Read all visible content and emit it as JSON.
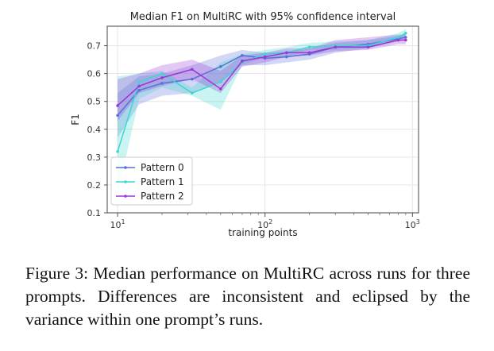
{
  "chart_data": {
    "type": "line",
    "title": "Median F1 on MultiRC with 95% confidence interval",
    "xlabel": "training points",
    "ylabel": "F1",
    "xscale": "log",
    "xlim": [
      8.5,
      1100
    ],
    "ylim": [
      0.1,
      0.77
    ],
    "grid": true,
    "legend_position": "lower-left",
    "yticks": [
      "0.1",
      "0.2",
      "0.3",
      "0.4",
      "0.5",
      "0.6",
      "0.7"
    ],
    "xticks": [
      {
        "value": 10,
        "base": "10",
        "exp": "1"
      },
      {
        "value": 100,
        "base": "10",
        "exp": "2"
      },
      {
        "value": 1000,
        "base": "10",
        "exp": "3"
      }
    ],
    "x": [
      10,
      14,
      20,
      32,
      50,
      70,
      100,
      140,
      200,
      300,
      500,
      800,
      900
    ],
    "series": [
      {
        "name": "Pattern 0",
        "color": "#5b6fd6",
        "values": [
          0.45,
          0.54,
          0.565,
          0.58,
          0.625,
          0.665,
          0.655,
          0.66,
          0.67,
          0.695,
          0.705,
          0.725,
          0.73
        ],
        "lower": [
          0.37,
          0.49,
          0.52,
          0.53,
          0.57,
          0.63,
          0.63,
          0.64,
          0.65,
          0.675,
          0.69,
          0.715,
          0.72
        ],
        "upper": [
          0.53,
          0.59,
          0.6,
          0.63,
          0.665,
          0.685,
          0.675,
          0.68,
          0.69,
          0.71,
          0.72,
          0.735,
          0.74
        ]
      },
      {
        "name": "Pattern 1",
        "color": "#3fd6d0",
        "values": [
          0.32,
          0.57,
          0.6,
          0.53,
          0.57,
          0.64,
          0.67,
          0.675,
          0.695,
          0.7,
          0.7,
          0.73,
          0.745
        ],
        "lower": [
          0.17,
          0.51,
          0.55,
          0.52,
          0.47,
          0.63,
          0.66,
          0.66,
          0.685,
          0.685,
          0.69,
          0.72,
          0.73
        ],
        "upper": [
          0.59,
          0.6,
          0.61,
          0.55,
          0.64,
          0.67,
          0.685,
          0.695,
          0.71,
          0.715,
          0.72,
          0.745,
          0.76
        ]
      },
      {
        "name": "Pattern 2",
        "color": "#9b37d6",
        "values": [
          0.485,
          0.555,
          0.585,
          0.615,
          0.545,
          0.645,
          0.66,
          0.675,
          0.675,
          0.695,
          0.695,
          0.72,
          0.72
        ],
        "lower": [
          0.43,
          0.53,
          0.555,
          0.58,
          0.53,
          0.625,
          0.64,
          0.66,
          0.665,
          0.68,
          0.685,
          0.705,
          0.705
        ],
        "upper": [
          0.58,
          0.6,
          0.63,
          0.65,
          0.61,
          0.665,
          0.675,
          0.69,
          0.69,
          0.72,
          0.73,
          0.74,
          0.74
        ]
      }
    ]
  },
  "caption": "Figure 3: Median performance on MultiRC across runs for three prompts. Differences are inconsistent and eclipsed by the variance within one prompt’s runs."
}
